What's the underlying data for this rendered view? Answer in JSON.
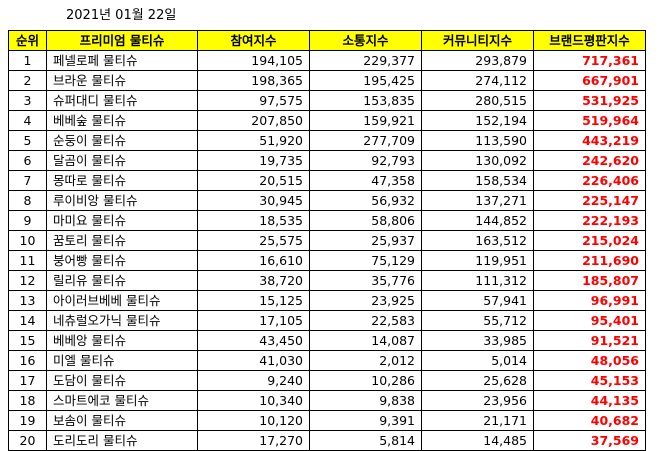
{
  "date": "2021년 01월 22일",
  "table": {
    "headers": [
      "순위",
      "프리미엄 물티슈",
      "참여지수",
      "소통지수",
      "커뮤니티지수",
      "브랜드평판지수"
    ],
    "rows": [
      {
        "rank": "1",
        "name": "페넬로페 물티슈",
        "participation": "194,105",
        "communication": "229,377",
        "community": "293,879",
        "brand": "717,361"
      },
      {
        "rank": "2",
        "name": "브라운 물티슈",
        "participation": "198,365",
        "communication": "195,425",
        "community": "274,112",
        "brand": "667,901"
      },
      {
        "rank": "3",
        "name": "슈퍼대디 물티슈",
        "participation": "97,575",
        "communication": "153,835",
        "community": "280,515",
        "brand": "531,925"
      },
      {
        "rank": "4",
        "name": "베베숲 물티슈",
        "participation": "207,850",
        "communication": "159,921",
        "community": "152,194",
        "brand": "519,964"
      },
      {
        "rank": "5",
        "name": "순둥이 물티슈",
        "participation": "51,920",
        "communication": "277,709",
        "community": "113,590",
        "brand": "443,219"
      },
      {
        "rank": "6",
        "name": "달곰이 물티슈",
        "participation": "19,735",
        "communication": "92,793",
        "community": "130,092",
        "brand": "242,620"
      },
      {
        "rank": "7",
        "name": "몽따로 물티슈",
        "participation": "20,515",
        "communication": "47,358",
        "community": "158,534",
        "brand": "226,406"
      },
      {
        "rank": "8",
        "name": "루이비앙 물티슈",
        "participation": "30,945",
        "communication": "56,932",
        "community": "137,271",
        "brand": "225,147"
      },
      {
        "rank": "9",
        "name": "마미요 물티슈",
        "participation": "18,535",
        "communication": "58,806",
        "community": "144,852",
        "brand": "222,193"
      },
      {
        "rank": "10",
        "name": "꿈토리 물티슈",
        "participation": "25,575",
        "communication": "25,937",
        "community": "163,512",
        "brand": "215,024"
      },
      {
        "rank": "11",
        "name": "붕어빵 물티슈",
        "participation": "16,610",
        "communication": "75,129",
        "community": "119,951",
        "brand": "211,690"
      },
      {
        "rank": "12",
        "name": "릴리유 물티슈",
        "participation": "38,720",
        "communication": "35,776",
        "community": "111,312",
        "brand": "185,807"
      },
      {
        "rank": "13",
        "name": "아이러브베베 물티슈",
        "participation": "15,125",
        "communication": "23,925",
        "community": "57,941",
        "brand": "96,991"
      },
      {
        "rank": "14",
        "name": "네츄럴오가닉 물티슈",
        "participation": "17,105",
        "communication": "22,583",
        "community": "55,712",
        "brand": "95,401"
      },
      {
        "rank": "15",
        "name": "베베앙 물티슈",
        "participation": "43,450",
        "communication": "14,087",
        "community": "33,985",
        "brand": "91,521"
      },
      {
        "rank": "16",
        "name": "미엘 물티슈",
        "participation": "41,030",
        "communication": "2,012",
        "community": "5,014",
        "brand": "48,056"
      },
      {
        "rank": "17",
        "name": "도담이 물티슈",
        "participation": "9,240",
        "communication": "10,286",
        "community": "25,628",
        "brand": "45,153"
      },
      {
        "rank": "18",
        "name": "스마트에코 물티슈",
        "participation": "10,340",
        "communication": "9,838",
        "community": "23,956",
        "brand": "44,135"
      },
      {
        "rank": "19",
        "name": "보솜이 물티슈",
        "participation": "10,120",
        "communication": "9,391",
        "community": "21,171",
        "brand": "40,682"
      },
      {
        "rank": "20",
        "name": "도리도리 물티슈",
        "participation": "17,270",
        "communication": "5,814",
        "community": "14,485",
        "brand": "37,569"
      }
    ]
  },
  "colors": {
    "header_bg": "#ffff00",
    "brand_text": "#ff0000",
    "grid": "#000000"
  }
}
